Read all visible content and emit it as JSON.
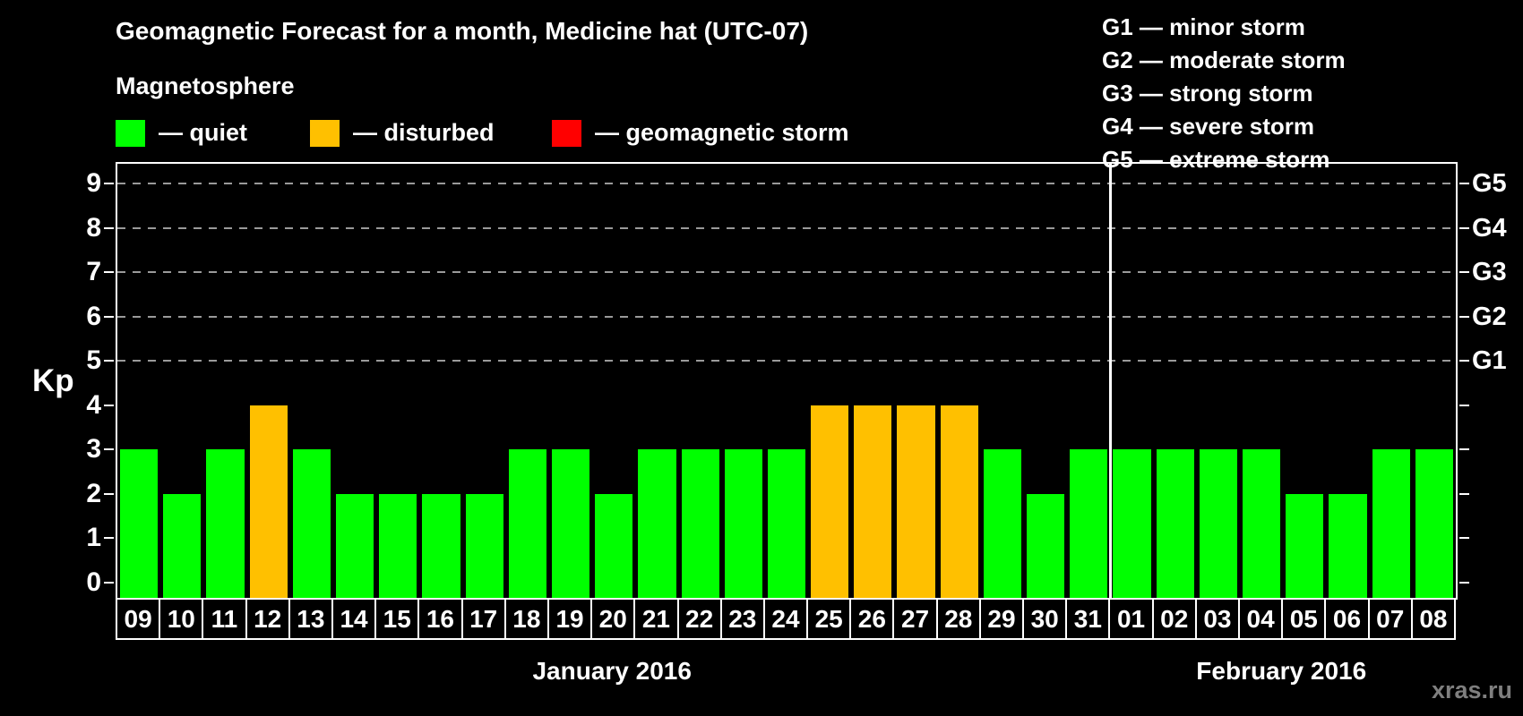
{
  "title": "Geomagnetic Forecast for a month, Medicine hat (UTC-07)",
  "subtitle": "Magnetosphere",
  "legend": {
    "items": [
      {
        "key": "quiet",
        "label": "— quiet",
        "color": "#00FF00"
      },
      {
        "key": "disturbed",
        "label": "— disturbed",
        "color": "#FFC000"
      },
      {
        "key": "storm",
        "label": "— geomagnetic storm",
        "color": "#FF0000"
      }
    ]
  },
  "g_legend": [
    "G1 — minor storm",
    "G2 — moderate storm",
    "G3 — strong storm",
    "G4 — severe storm",
    "G5 — extreme storm"
  ],
  "watermark": "xras.ru",
  "chart_data": {
    "type": "bar",
    "title": "Geomagnetic Forecast for a month, Medicine hat (UTC-07)",
    "xlabel": "",
    "ylabel": "Kp",
    "ylim": [
      0,
      9
    ],
    "yticks": [
      0,
      1,
      2,
      3,
      4,
      5,
      6,
      7,
      8,
      9
    ],
    "grid": "horizontal dashed lines at Kp 5 through 9",
    "legend_position": "top",
    "right_axis": [
      {
        "kp": 5,
        "label": "G1"
      },
      {
        "kp": 6,
        "label": "G2"
      },
      {
        "kp": 7,
        "label": "G3"
      },
      {
        "kp": 8,
        "label": "G4"
      },
      {
        "kp": 9,
        "label": "G5"
      }
    ],
    "status_colors": {
      "quiet": "#00FF00",
      "disturbed": "#FFC000",
      "storm": "#FF0000"
    },
    "months": [
      {
        "label": "January 2016",
        "points": [
          {
            "day": "09",
            "kp": 3,
            "status": "quiet"
          },
          {
            "day": "10",
            "kp": 2,
            "status": "quiet"
          },
          {
            "day": "11",
            "kp": 3,
            "status": "quiet"
          },
          {
            "day": "12",
            "kp": 4,
            "status": "disturbed"
          },
          {
            "day": "13",
            "kp": 3,
            "status": "quiet"
          },
          {
            "day": "14",
            "kp": 2,
            "status": "quiet"
          },
          {
            "day": "15",
            "kp": 2,
            "status": "quiet"
          },
          {
            "day": "16",
            "kp": 2,
            "status": "quiet"
          },
          {
            "day": "17",
            "kp": 2,
            "status": "quiet"
          },
          {
            "day": "18",
            "kp": 3,
            "status": "quiet"
          },
          {
            "day": "19",
            "kp": 3,
            "status": "quiet"
          },
          {
            "day": "20",
            "kp": 2,
            "status": "quiet"
          },
          {
            "day": "21",
            "kp": 3,
            "status": "quiet"
          },
          {
            "day": "22",
            "kp": 3,
            "status": "quiet"
          },
          {
            "day": "23",
            "kp": 3,
            "status": "quiet"
          },
          {
            "day": "24",
            "kp": 3,
            "status": "quiet"
          },
          {
            "day": "25",
            "kp": 4,
            "status": "disturbed"
          },
          {
            "day": "26",
            "kp": 4,
            "status": "disturbed"
          },
          {
            "day": "27",
            "kp": 4,
            "status": "disturbed"
          },
          {
            "day": "28",
            "kp": 4,
            "status": "disturbed"
          },
          {
            "day": "29",
            "kp": 3,
            "status": "quiet"
          },
          {
            "day": "30",
            "kp": 2,
            "status": "quiet"
          },
          {
            "day": "31",
            "kp": 3,
            "status": "quiet"
          }
        ]
      },
      {
        "label": "February 2016",
        "points": [
          {
            "day": "01",
            "kp": 3,
            "status": "quiet"
          },
          {
            "day": "02",
            "kp": 3,
            "status": "quiet"
          },
          {
            "day": "03",
            "kp": 3,
            "status": "quiet"
          },
          {
            "day": "04",
            "kp": 3,
            "status": "quiet"
          },
          {
            "day": "05",
            "kp": 2,
            "status": "quiet"
          },
          {
            "day": "06",
            "kp": 2,
            "status": "quiet"
          },
          {
            "day": "07",
            "kp": 3,
            "status": "quiet"
          },
          {
            "day": "08",
            "kp": 3,
            "status": "quiet"
          }
        ]
      }
    ]
  }
}
